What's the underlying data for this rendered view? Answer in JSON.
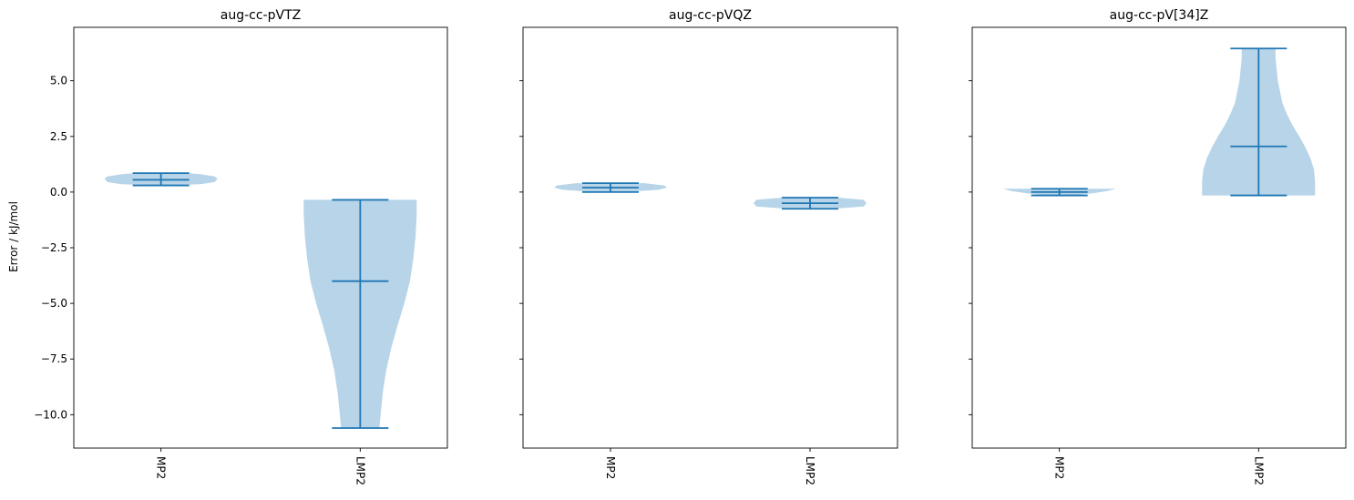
{
  "figure": {
    "ylabel": "Error / kJ/mol",
    "colors": {
      "violin_fill": "#b8d4e8",
      "stat_line": "#1f77b4",
      "axes": "#000000"
    }
  },
  "chart_data": [
    {
      "type": "violin",
      "title": "aug-cc-pVTZ",
      "xlabel": "",
      "ylabel": "Error / kJ/mol",
      "ylim": [
        -11.5,
        7.4
      ],
      "yticks": [
        -10.0,
        -7.5,
        -5.0,
        -2.5,
        0.0,
        2.5,
        5.0
      ],
      "ytick_labels": [
        "−10.0",
        "−7.5",
        "−5.0",
        "−2.5",
        "0.0",
        "2.5",
        "5.0"
      ],
      "categories": [
        "MP2",
        "LMP2"
      ],
      "violins": [
        {
          "category": "MP2",
          "min": 0.3,
          "max": 0.85,
          "mean": 0.55,
          "profile": [
            [
              0.3,
              0.05
            ],
            [
              0.35,
              0.7
            ],
            [
              0.45,
              0.95
            ],
            [
              0.6,
              1.0
            ],
            [
              0.7,
              0.95
            ],
            [
              0.8,
              0.7
            ],
            [
              0.85,
              0.45
            ]
          ]
        },
        {
          "category": "LMP2",
          "min": -10.6,
          "max": -0.35,
          "mean": -4.0,
          "profile": [
            [
              -10.6,
              0.34
            ],
            [
              -10.0,
              0.36
            ],
            [
              -9.0,
              0.4
            ],
            [
              -8.0,
              0.46
            ],
            [
              -7.0,
              0.55
            ],
            [
              -6.0,
              0.66
            ],
            [
              -5.0,
              0.78
            ],
            [
              -4.0,
              0.88
            ],
            [
              -3.0,
              0.94
            ],
            [
              -2.0,
              0.98
            ],
            [
              -1.0,
              1.0
            ],
            [
              -0.35,
              1.0
            ]
          ]
        }
      ]
    },
    {
      "type": "violin",
      "title": "aug-cc-pVQZ",
      "xlabel": "",
      "ylabel": "",
      "ylim": [
        -11.5,
        7.4
      ],
      "yticks": [
        -10.0,
        -7.5,
        -5.0,
        -2.5,
        0.0,
        2.5,
        5.0
      ],
      "ytick_labels": [],
      "categories": [
        "MP2",
        "LMP2"
      ],
      "violins": [
        {
          "category": "MP2",
          "min": 0.0,
          "max": 0.4,
          "mean": 0.2,
          "profile": [
            [
              0.0,
              0.25
            ],
            [
              0.1,
              0.85
            ],
            [
              0.2,
              1.0
            ],
            [
              0.3,
              0.95
            ],
            [
              0.4,
              0.6
            ]
          ]
        },
        {
          "category": "LMP2",
          "min": -0.75,
          "max": -0.25,
          "mean": -0.5,
          "profile": [
            [
              -0.75,
              0.4
            ],
            [
              -0.65,
              0.95
            ],
            [
              -0.5,
              1.0
            ],
            [
              -0.35,
              0.95
            ],
            [
              -0.25,
              0.5
            ]
          ]
        }
      ]
    },
    {
      "type": "violin",
      "title": "aug-cc-pV[34]Z",
      "xlabel": "",
      "ylabel": "",
      "ylim": [
        -11.5,
        7.4
      ],
      "yticks": [
        -10.0,
        -7.5,
        -5.0,
        -2.5,
        0.0,
        2.5,
        5.0
      ],
      "ytick_labels": [],
      "categories": [
        "MP2",
        "LMP2"
      ],
      "violins": [
        {
          "category": "MP2",
          "min": -0.15,
          "max": 0.15,
          "mean": 0.0,
          "profile": [
            [
              -0.15,
              0.25
            ],
            [
              -0.05,
              0.6
            ],
            [
              0.05,
              0.85
            ],
            [
              0.15,
              1.0
            ]
          ]
        },
        {
          "category": "LMP2",
          "min": -0.15,
          "max": 6.45,
          "mean": 2.05,
          "profile": [
            [
              -0.15,
              1.0
            ],
            [
              0.5,
              1.0
            ],
            [
              1.0,
              0.98
            ],
            [
              1.5,
              0.92
            ],
            [
              2.0,
              0.83
            ],
            [
              2.5,
              0.72
            ],
            [
              3.0,
              0.6
            ],
            [
              3.5,
              0.5
            ],
            [
              4.0,
              0.42
            ],
            [
              5.0,
              0.34
            ],
            [
              6.0,
              0.3
            ],
            [
              6.45,
              0.3
            ]
          ]
        }
      ]
    }
  ]
}
